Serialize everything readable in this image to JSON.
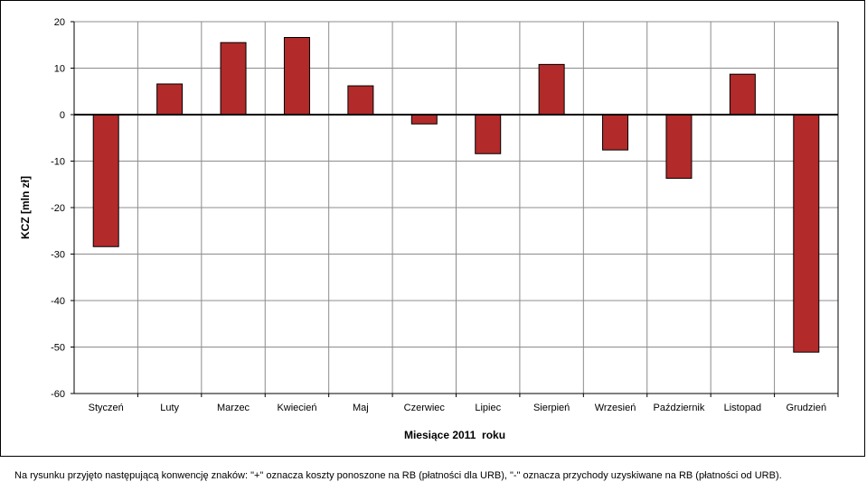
{
  "chart_data": {
    "type": "bar",
    "title": "",
    "xlabel": "Miesiące 2011  roku",
    "ylabel": "KCZ [mln zł]",
    "ylim": [
      -60,
      20
    ],
    "yticks": [
      20,
      10,
      0,
      -10,
      -20,
      -30,
      -40,
      -50,
      -60
    ],
    "grid": true,
    "legend": "none",
    "categories": [
      "Styczeń",
      "Luty",
      "Marzec",
      "Kwiecień",
      "Maj",
      "Czerwiec",
      "Lipiec",
      "Sierpień",
      "Wrzesień",
      "Październik",
      "Listopad",
      "Grudzień"
    ],
    "values": [
      -28.4,
      6.6,
      15.5,
      16.6,
      6.2,
      -2.0,
      -8.4,
      10.8,
      -7.6,
      -13.7,
      8.7,
      -51.1
    ],
    "bar_color": "#b22a2a"
  },
  "footnote": "Na rysunku przyjęto następującą konwencję znaków: \"+\" oznacza koszty ponoszone na RB (płatności dla URB), \"-\" oznacza przychody uzyskiwane na RB (płatności od URB)."
}
